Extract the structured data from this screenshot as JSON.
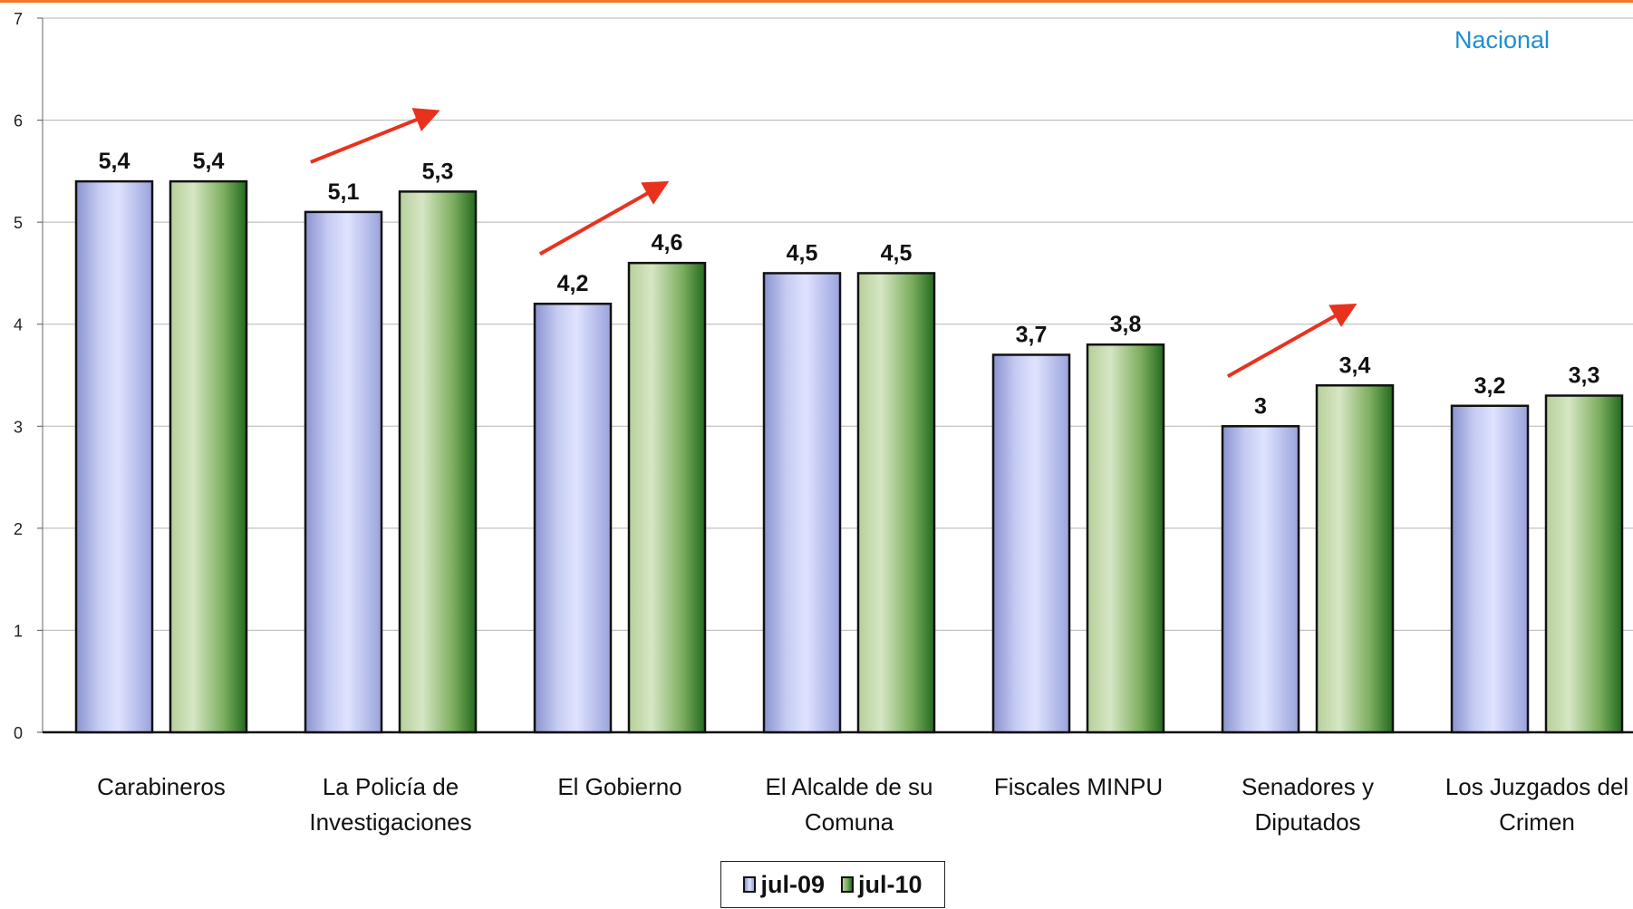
{
  "chart_data": {
    "type": "bar",
    "region_label": "Nacional",
    "categories": [
      [
        "Carabineros"
      ],
      [
        "La Policía de",
        "Investigaciones"
      ],
      [
        "El Gobierno"
      ],
      [
        "El Alcalde de su",
        "Comuna"
      ],
      [
        "Fiscales MINPU"
      ],
      [
        "Senadores y",
        "Diputados"
      ],
      [
        "Los Juzgados del",
        "Crimen"
      ]
    ],
    "series": [
      {
        "name": "jul-09",
        "values": [
          5.4,
          5.1,
          4.2,
          4.5,
          3.7,
          3.0,
          3.2
        ],
        "labels": [
          "5,4",
          "5,1",
          "4,2",
          "4,5",
          "3,7",
          "3",
          "3,2"
        ],
        "color": "#aab2e6"
      },
      {
        "name": "jul-10",
        "values": [
          5.4,
          5.3,
          4.6,
          4.5,
          3.8,
          3.4,
          3.3
        ],
        "labels": [
          "5,4",
          "5,3",
          "4,6",
          "4,5",
          "3,8",
          "3,4",
          "3,3"
        ],
        "color": "#3f8a36"
      }
    ],
    "ylim": [
      0,
      7
    ],
    "yticks": [
      "0",
      "1",
      "2",
      "3",
      "4",
      "5",
      "6",
      "7"
    ],
    "grid": true,
    "legend_position": "bottom-center",
    "trend_arrows": {
      "categories": [
        1,
        2,
        5
      ],
      "color": "#e8321e"
    },
    "accent_color": "#f07a2a",
    "region_label_color": "#1f8fcf"
  }
}
